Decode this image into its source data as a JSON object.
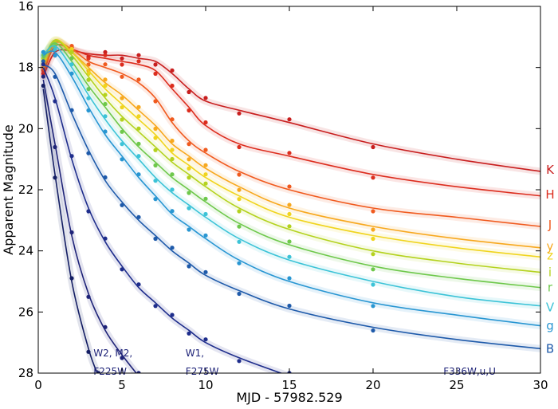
{
  "chart_data": {
    "type": "line",
    "title": "",
    "xlabel": "MJD - 57982.529",
    "ylabel": "Apparent Magnitude",
    "xlim": [
      0,
      30
    ],
    "ylim": [
      28,
      16
    ],
    "y_inverted": true,
    "xticks": [
      0,
      5,
      10,
      15,
      20,
      25,
      30
    ],
    "yticks": [
      16,
      18,
      20,
      22,
      24,
      26,
      28
    ],
    "grid": false,
    "legend": "band labels at right edge",
    "series": [
      {
        "name": "K",
        "color": "#c81e1e",
        "label_y": 21.35,
        "values": [
          [
            0.3,
            18.3
          ],
          [
            1,
            17.5
          ],
          [
            2,
            17.45
          ],
          [
            3,
            17.55
          ],
          [
            4,
            17.6
          ],
          [
            5,
            17.6
          ],
          [
            6,
            17.7
          ],
          [
            7,
            17.8
          ],
          [
            8,
            18.2
          ],
          [
            9,
            18.7
          ],
          [
            10,
            19.1
          ],
          [
            12,
            19.4
          ],
          [
            15,
            19.8
          ],
          [
            20,
            20.5
          ],
          [
            25,
            21.0
          ],
          [
            30,
            21.4
          ]
        ]
      },
      {
        "name": "H",
        "color": "#dc2d1e",
        "label_y": 22.15,
        "values": [
          [
            0.3,
            18.2
          ],
          [
            1,
            17.3
          ],
          [
            2,
            17.4
          ],
          [
            3,
            17.6
          ],
          [
            4,
            17.7
          ],
          [
            5,
            17.8
          ],
          [
            6,
            17.9
          ],
          [
            7,
            18.1
          ],
          [
            8,
            18.7
          ],
          [
            9,
            19.3
          ],
          [
            10,
            19.9
          ],
          [
            12,
            20.5
          ],
          [
            15,
            20.9
          ],
          [
            20,
            21.5
          ],
          [
            25,
            21.9
          ],
          [
            30,
            22.2
          ]
        ]
      },
      {
        "name": "J",
        "color": "#f05a1e",
        "label_y": 23.15,
        "values": [
          [
            0.3,
            18.1
          ],
          [
            1,
            17.2
          ],
          [
            2,
            17.4
          ],
          [
            3,
            17.8
          ],
          [
            4,
            18.0
          ],
          [
            5,
            18.2
          ],
          [
            6,
            18.5
          ],
          [
            7,
            19.0
          ],
          [
            8,
            19.8
          ],
          [
            9,
            20.4
          ],
          [
            10,
            20.8
          ],
          [
            12,
            21.4
          ],
          [
            15,
            22.0
          ],
          [
            20,
            22.6
          ],
          [
            25,
            22.9
          ],
          [
            30,
            23.2
          ]
        ]
      },
      {
        "name": "y",
        "color": "#f7a81e",
        "label_y": 23.85,
        "values": [
          [
            0.3,
            18.0
          ],
          [
            1,
            17.15
          ],
          [
            2,
            17.5
          ],
          [
            3,
            18.0
          ],
          [
            4,
            18.5
          ],
          [
            5,
            18.9
          ],
          [
            6,
            19.4
          ],
          [
            7,
            19.9
          ],
          [
            8,
            20.5
          ],
          [
            9,
            20.9
          ],
          [
            10,
            21.3
          ],
          [
            12,
            21.9
          ],
          [
            15,
            22.6
          ],
          [
            20,
            23.2
          ],
          [
            25,
            23.6
          ],
          [
            30,
            23.9
          ]
        ]
      },
      {
        "name": "z",
        "color": "#f0d41e",
        "label_y": 24.15,
        "values": [
          [
            0.3,
            17.9
          ],
          [
            1,
            17.1
          ],
          [
            2,
            17.5
          ],
          [
            3,
            18.1
          ],
          [
            4,
            18.7
          ],
          [
            5,
            19.2
          ],
          [
            6,
            19.7
          ],
          [
            7,
            20.2
          ],
          [
            8,
            20.8
          ],
          [
            9,
            21.2
          ],
          [
            10,
            21.6
          ],
          [
            12,
            22.2
          ],
          [
            15,
            22.9
          ],
          [
            20,
            23.5
          ],
          [
            25,
            23.9
          ],
          [
            30,
            24.2
          ]
        ]
      },
      {
        "name": "i",
        "color": "#b4d21e",
        "label_y": 24.7,
        "values": [
          [
            0.3,
            17.8
          ],
          [
            1,
            17.1
          ],
          [
            2,
            17.6
          ],
          [
            3,
            18.3
          ],
          [
            4,
            19.0
          ],
          [
            5,
            19.6
          ],
          [
            6,
            20.1
          ],
          [
            7,
            20.6
          ],
          [
            8,
            21.1
          ],
          [
            9,
            21.5
          ],
          [
            10,
            21.9
          ],
          [
            12,
            22.6
          ],
          [
            15,
            23.3
          ],
          [
            20,
            24.0
          ],
          [
            25,
            24.4
          ],
          [
            30,
            24.7
          ]
        ]
      },
      {
        "name": "r",
        "color": "#6ec84b",
        "label_y": 25.2,
        "values": [
          [
            0.3,
            17.7
          ],
          [
            1,
            17.2
          ],
          [
            2,
            17.8
          ],
          [
            3,
            18.6
          ],
          [
            4,
            19.3
          ],
          [
            5,
            20.0
          ],
          [
            6,
            20.6
          ],
          [
            7,
            21.1
          ],
          [
            8,
            21.6
          ],
          [
            9,
            22.0
          ],
          [
            10,
            22.4
          ],
          [
            12,
            23.1
          ],
          [
            15,
            23.8
          ],
          [
            20,
            24.5
          ],
          [
            25,
            24.9
          ],
          [
            30,
            25.2
          ]
        ]
      },
      {
        "name": "V",
        "color": "#3cc3d7",
        "label_y": 25.85,
        "values": [
          [
            0.3,
            17.6
          ],
          [
            1,
            17.3
          ],
          [
            2,
            18.0
          ],
          [
            3,
            18.9
          ],
          [
            4,
            19.7
          ],
          [
            5,
            20.4
          ],
          [
            6,
            21.0
          ],
          [
            7,
            21.6
          ],
          [
            8,
            22.1
          ],
          [
            9,
            22.5
          ],
          [
            10,
            22.9
          ],
          [
            12,
            23.6
          ],
          [
            15,
            24.3
          ],
          [
            20,
            25.0
          ],
          [
            25,
            25.5
          ],
          [
            30,
            25.8
          ]
        ]
      },
      {
        "name": "g",
        "color": "#2896d2",
        "label_y": 26.45,
        "values": [
          [
            0.3,
            17.6
          ],
          [
            1,
            17.5
          ],
          [
            2,
            18.3
          ],
          [
            3,
            19.3
          ],
          [
            4,
            20.2
          ],
          [
            5,
            20.9
          ],
          [
            6,
            21.6
          ],
          [
            7,
            22.2
          ],
          [
            8,
            22.8
          ],
          [
            9,
            23.2
          ],
          [
            10,
            23.6
          ],
          [
            12,
            24.3
          ],
          [
            15,
            25.0
          ],
          [
            20,
            25.7
          ],
          [
            25,
            26.1
          ],
          [
            30,
            26.45
          ]
        ]
      },
      {
        "name": "B",
        "color": "#1e5aaa",
        "label_y": 27.2,
        "values": [
          [
            0.3,
            17.9
          ],
          [
            1,
            18.2
          ],
          [
            2,
            19.5
          ],
          [
            3,
            20.7
          ],
          [
            4,
            21.7
          ],
          [
            5,
            22.4
          ],
          [
            6,
            23.0
          ],
          [
            7,
            23.5
          ],
          [
            8,
            24.0
          ],
          [
            9,
            24.4
          ],
          [
            10,
            24.8
          ],
          [
            12,
            25.3
          ],
          [
            15,
            25.9
          ],
          [
            20,
            26.5
          ],
          [
            25,
            26.9
          ],
          [
            30,
            27.2
          ]
        ]
      },
      {
        "name": "F336W,u,U",
        "color": "#1e2d8c",
        "label_y": 27.8,
        "values": [
          [
            0.3,
            18.0
          ],
          [
            1,
            19.0
          ],
          [
            2,
            21.0
          ],
          [
            3,
            22.6
          ],
          [
            4,
            23.7
          ],
          [
            5,
            24.5
          ],
          [
            6,
            25.2
          ],
          [
            7,
            25.7
          ],
          [
            8,
            26.2
          ],
          [
            9,
            26.6
          ],
          [
            10,
            27.0
          ],
          [
            12,
            27.5
          ],
          [
            15,
            28.1
          ]
        ]
      },
      {
        "name": "W1, F275W",
        "color": "#1e2378",
        "label_y": 27.2,
        "values": [
          [
            0.3,
            18.4
          ],
          [
            1,
            20.5
          ],
          [
            2,
            23.5
          ],
          [
            3,
            25.4
          ],
          [
            4,
            26.6
          ],
          [
            5,
            27.4
          ],
          [
            6,
            28.1
          ]
        ]
      },
      {
        "name": "W2, M2, F225W",
        "color": "#141e64",
        "label_y": 27.4,
        "values": [
          [
            0.3,
            18.7
          ],
          [
            1,
            21.5
          ],
          [
            2,
            25.0
          ],
          [
            3,
            27.2
          ],
          [
            3.6,
            28.1
          ]
        ]
      }
    ],
    "annotations": [
      {
        "text": "W2, M2,",
        "x": 3.3,
        "y": 27.35
      },
      {
        "text": "F225W",
        "x": 3.3,
        "y": 27.95
      },
      {
        "text": "W1,",
        "x": 8.8,
        "y": 27.35
      },
      {
        "text": "F275W",
        "x": 8.8,
        "y": 27.95
      },
      {
        "text": "F336W,u,U",
        "x": 24.2,
        "y": 27.95
      }
    ]
  }
}
